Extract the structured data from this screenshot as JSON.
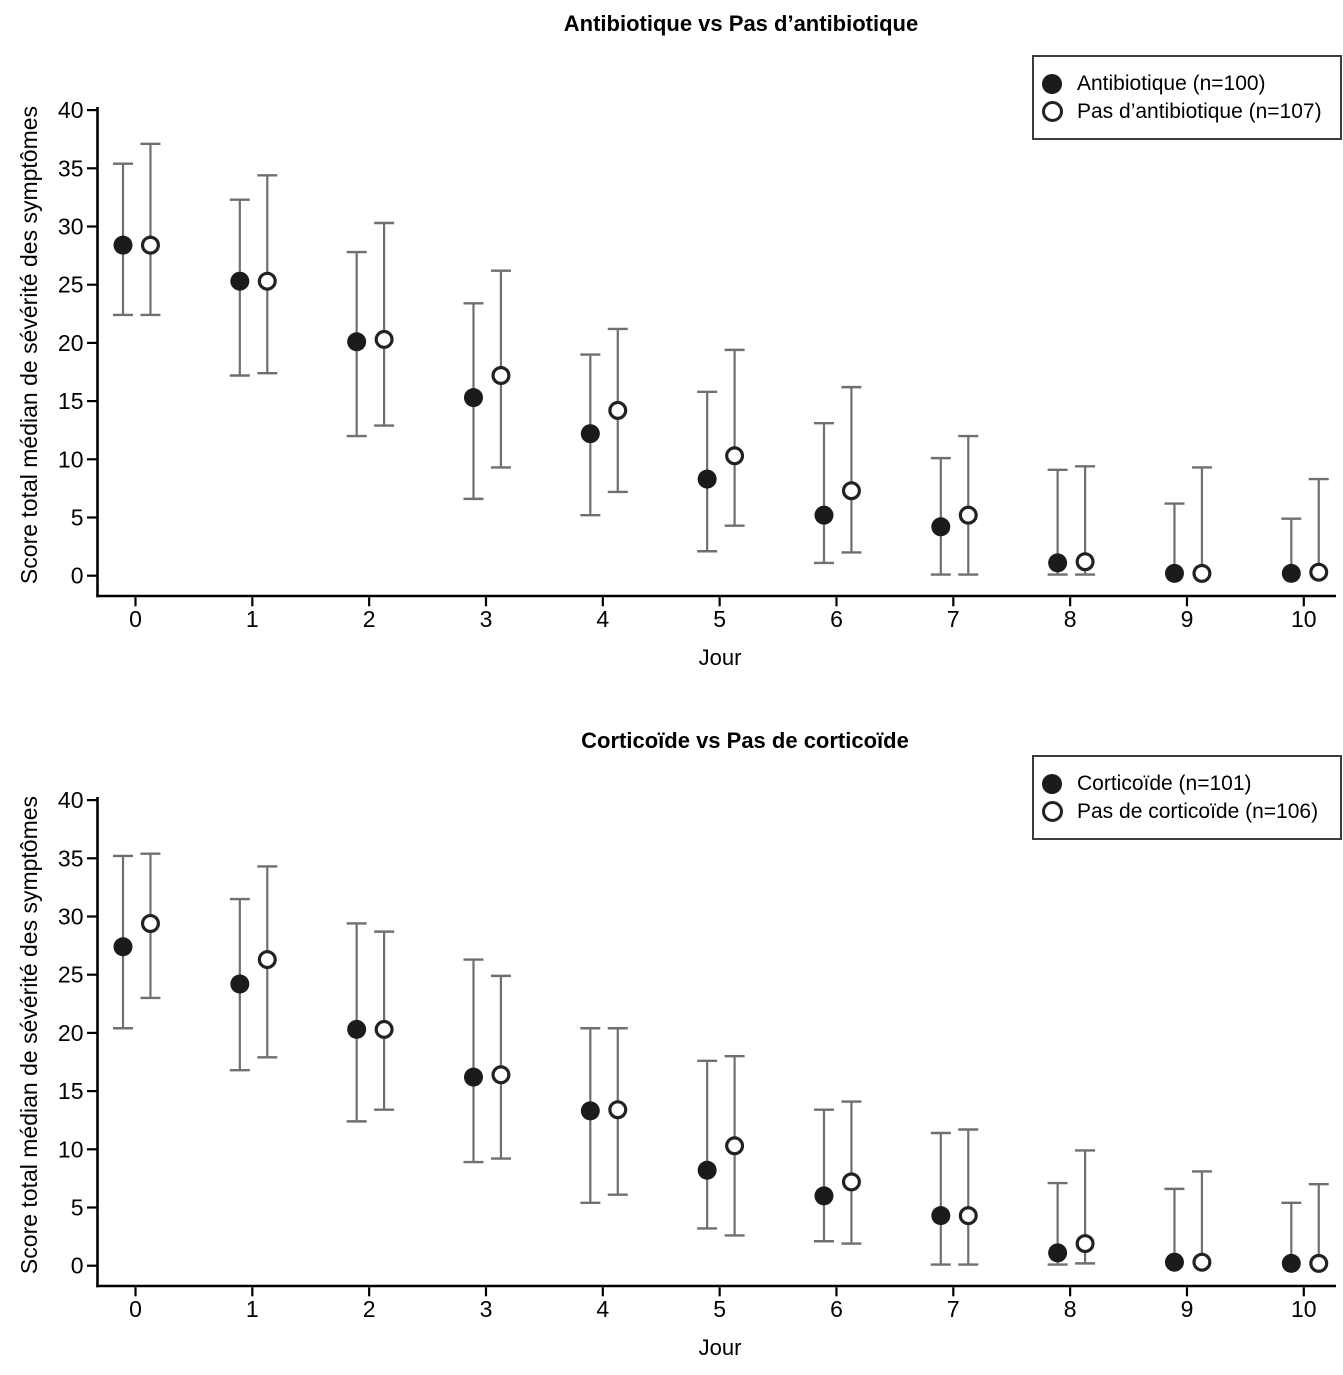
{
  "figure": {
    "background": "#ffffff",
    "n_panels": 2
  },
  "colors": {
    "marker_filled": "#1b1b1b",
    "marker_open_stroke": "#222222",
    "marker_open_fill": "#ffffff",
    "whisker": "#6f6f6f",
    "axis": "#000000",
    "text": "#000000",
    "legend_border": "#3c3c3c"
  },
  "chart_data": [
    {
      "type": "scatter",
      "subtype": "point-estimates-with-error-bars",
      "title": "Antibiotique vs Pas d’antibiotique",
      "xlabel": "Jour",
      "ylabel": "Score total médian de sévérité des symptômes",
      "x": [
        0,
        1,
        2,
        3,
        4,
        5,
        6,
        7,
        8,
        9,
        10
      ],
      "xticks": [
        0,
        1,
        2,
        3,
        4,
        5,
        6,
        7,
        8,
        9,
        10
      ],
      "yticks": [
        0,
        5,
        10,
        15,
        20,
        25,
        30,
        35,
        40
      ],
      "ylim": [
        0,
        40
      ],
      "grid": false,
      "legend_position": "top-right",
      "series": [
        {
          "name": "Antibiotique (n=100)",
          "marker": "filled-circle",
          "x_offset": -0.107,
          "values": [
            28.4,
            25.3,
            20.1,
            15.3,
            12.2,
            8.3,
            5.2,
            4.2,
            1.1,
            0.2,
            0.2
          ],
          "ci_low": [
            22.4,
            17.2,
            12.0,
            6.6,
            5.2,
            2.1,
            1.1,
            0.1,
            0.1,
            0.1,
            0.1
          ],
          "ci_high": [
            35.4,
            32.3,
            27.8,
            23.4,
            19.0,
            15.8,
            13.1,
            10.1,
            9.1,
            6.2,
            4.9
          ]
        },
        {
          "name": "Pas d’antibiotique (n=107)",
          "marker": "open-circle",
          "x_offset": 0.128,
          "values": [
            28.4,
            25.3,
            20.3,
            17.2,
            14.2,
            10.3,
            7.3,
            5.2,
            1.2,
            0.2,
            0.3
          ],
          "ci_low": [
            22.4,
            17.4,
            12.9,
            9.3,
            7.2,
            4.3,
            2.0,
            0.1,
            0.1,
            0.1,
            0.1
          ],
          "ci_high": [
            37.1,
            34.4,
            30.3,
            26.2,
            21.2,
            19.4,
            16.2,
            12.0,
            9.4,
            9.3,
            8.3
          ]
        }
      ]
    },
    {
      "type": "scatter",
      "subtype": "point-estimates-with-error-bars",
      "title": "Corticoïde vs Pas de corticoïde",
      "xlabel": "Jour",
      "ylabel": "Score total médian de sévérité des symptômes",
      "x": [
        0,
        1,
        2,
        3,
        4,
        5,
        6,
        7,
        8,
        9,
        10
      ],
      "xticks": [
        0,
        1,
        2,
        3,
        4,
        5,
        6,
        7,
        8,
        9,
        10
      ],
      "yticks": [
        0,
        5,
        10,
        15,
        20,
        25,
        30,
        35,
        40
      ],
      "ylim": [
        0,
        40
      ],
      "grid": false,
      "legend_position": "top-right",
      "series": [
        {
          "name": "Corticoïde (n=101)",
          "marker": "filled-circle",
          "x_offset": -0.107,
          "values": [
            27.4,
            24.2,
            20.3,
            16.2,
            13.3,
            8.2,
            6.0,
            4.3,
            1.1,
            0.3,
            0.2
          ],
          "ci_low": [
            20.4,
            16.8,
            12.4,
            8.9,
            5.4,
            3.2,
            2.1,
            0.1,
            0.1,
            0.1,
            0.1
          ],
          "ci_high": [
            35.2,
            31.5,
            29.4,
            26.3,
            20.4,
            17.6,
            13.4,
            11.4,
            7.1,
            6.6,
            5.4
          ]
        },
        {
          "name": "Pas de corticoïde (n=106)",
          "marker": "open-circle",
          "x_offset": 0.128,
          "values": [
            29.4,
            26.3,
            20.3,
            16.4,
            13.4,
            10.3,
            7.2,
            4.3,
            1.9,
            0.3,
            0.2
          ],
          "ci_low": [
            23.0,
            17.9,
            13.4,
            9.2,
            6.1,
            2.6,
            1.9,
            0.1,
            0.2,
            0.1,
            0.1
          ],
          "ci_high": [
            35.4,
            34.3,
            28.7,
            24.9,
            20.4,
            18.0,
            14.1,
            11.7,
            9.9,
            8.1,
            7.0
          ]
        }
      ]
    }
  ]
}
